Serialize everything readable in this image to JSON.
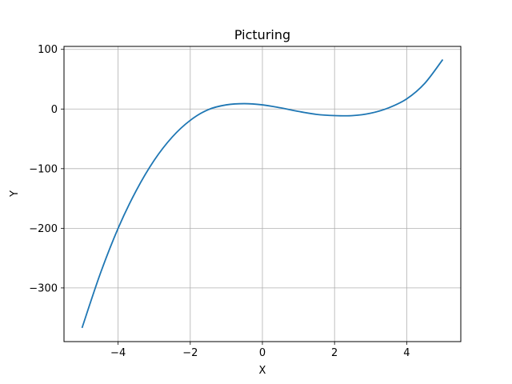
{
  "chart_data": {
    "type": "line",
    "title": "Picturing",
    "xlabel": "X",
    "ylabel": "Y",
    "xlim": [
      -5.5,
      5.5
    ],
    "ylim": [
      -390,
      105
    ],
    "grid": true,
    "x_ticks": [
      -4,
      -2,
      0,
      2,
      4
    ],
    "x_tick_labels": [
      "−4",
      "−2",
      "0",
      "2",
      "4"
    ],
    "y_ticks": [
      100,
      0,
      -100,
      -200,
      -300
    ],
    "y_tick_labels": [
      "100",
      "0",
      "−100",
      "−200",
      "−300"
    ],
    "series": [
      {
        "color": "#1f77b4",
        "x": [
          -5,
          -4.5,
          -4,
          -3.5,
          -3,
          -2.5,
          -2,
          -1.5,
          -1,
          -0.5,
          0,
          0.5,
          1,
          1.5,
          2,
          2.5,
          3,
          3.5,
          4,
          4.5,
          5
        ],
        "y": [
          -367,
          -277,
          -200,
          -137,
          -86,
          -47,
          -19,
          -1,
          7,
          9,
          7,
          2,
          -4,
          -9,
          -11,
          -11,
          -7,
          2,
          17,
          43,
          83
        ]
      }
    ]
  }
}
